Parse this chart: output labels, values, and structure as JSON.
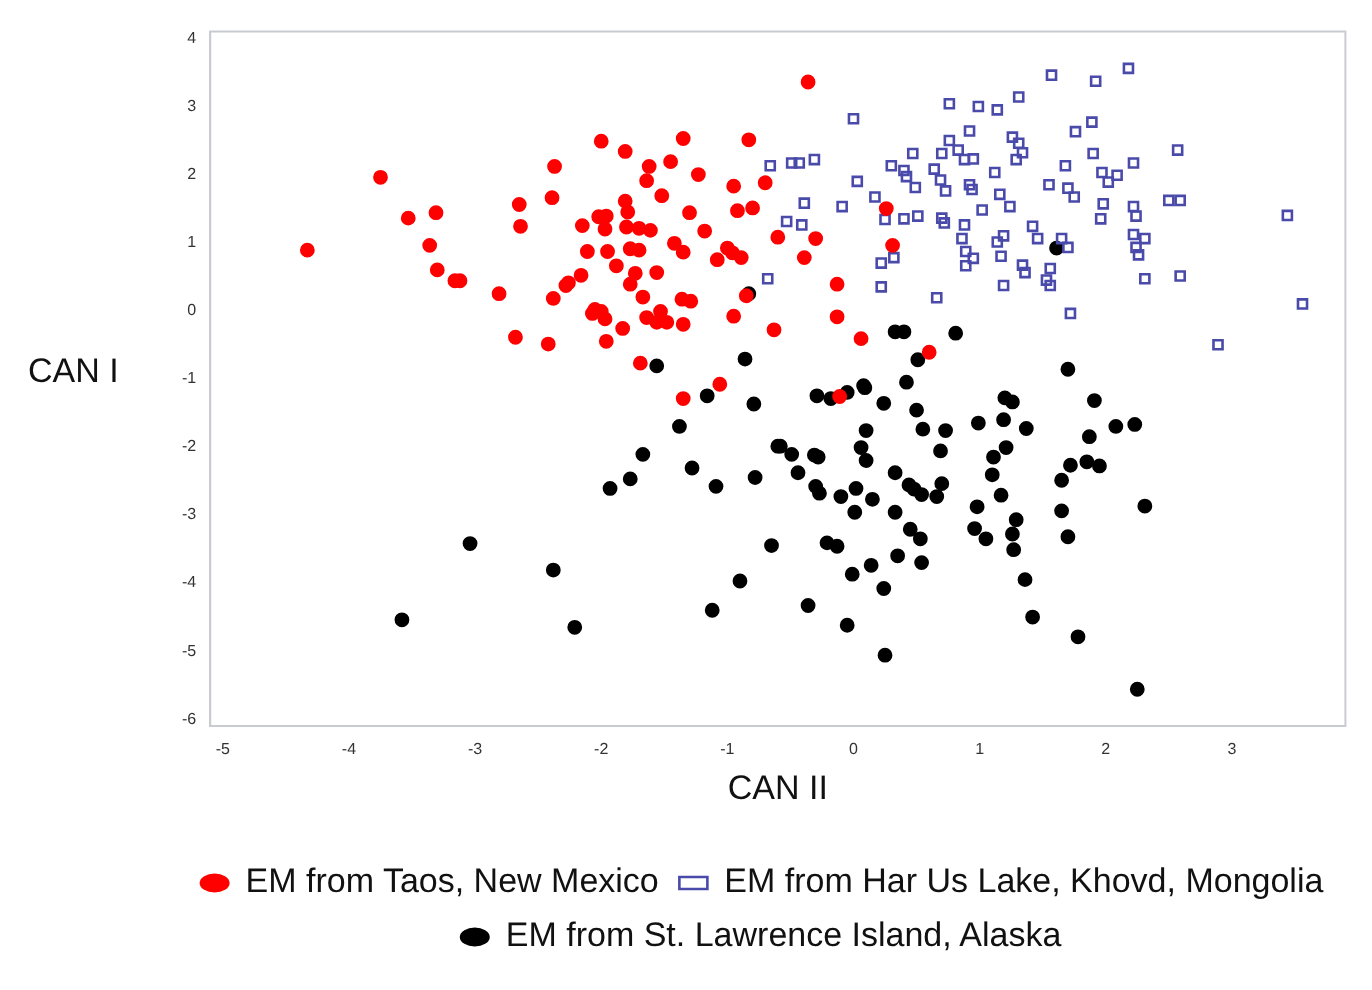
{
  "chart_data": {
    "type": "scatter",
    "xlabel": "CAN II",
    "ylabel": "CAN I",
    "xlim": [
      -5.1,
      3.9
    ],
    "xticks": [
      -5,
      -4,
      -3,
      -2,
      -1,
      0,
      1,
      2,
      3
    ],
    "ylim": [
      -6.1,
      4.1
    ],
    "yticks": [
      -6,
      -5,
      -4,
      -3,
      -2,
      -1,
      0,
      1,
      2,
      3,
      4
    ],
    "grid": false,
    "legend": "bottom",
    "series": [
      {
        "name": "EM from Taos, New Mexico",
        "color": "#ff0000",
        "marker": "circle",
        "x": [
          -4.33,
          -3.75,
          -3.53,
          -3.31,
          -3.36,
          -3.3,
          -3.16,
          -3.12,
          -2.81,
          -2.68,
          -2.42,
          -2.65,
          -2.64,
          -2.37,
          -2.39,
          -2.38,
          -2.28,
          -2.26,
          -2.16,
          -2.15,
          -2.11,
          -2.0,
          -2.02,
          -1.96,
          -1.97,
          -1.95,
          -2.05,
          -2.0,
          -2.07,
          -1.97,
          -1.96,
          -1.88,
          -1.81,
          -1.81,
          -1.79,
          -1.8,
          -1.77,
          -1.77,
          -1.73,
          -1.7,
          -1.61,
          -1.7,
          -1.67,
          -1.83,
          -1.62,
          -1.64,
          -1.56,
          -1.64,
          -1.56,
          -1.53,
          -1.48,
          -1.52,
          -1.45,
          -1.35,
          -1.42,
          -1.35,
          -1.3,
          -1.36,
          -1.29,
          -1.35,
          -1.23,
          -1.18,
          -1.08,
          -1.0,
          -0.96,
          -0.89,
          -0.95,
          -0.92,
          -0.8,
          -0.83,
          -0.7,
          -0.95,
          -0.85,
          -0.63,
          -1.06,
          -1.69,
          -1.35,
          -0.36,
          -0.6,
          -0.3,
          -0.39,
          -0.13,
          -0.13,
          0.06,
          0.6,
          0.26,
          0.31,
          -0.11
        ],
        "values": [
          0.89,
          1.96,
          1.36,
          1.44,
          0.96,
          0.6,
          0.44,
          0.44,
          0.25,
          -0.39,
          -0.49,
          1.56,
          1.24,
          2.12,
          1.66,
          0.18,
          0.37,
          0.41,
          0.52,
          1.25,
          0.87,
          2.49,
          1.38,
          1.39,
          1.2,
          0.87,
          0.02,
          -0.01,
          -0.04,
          -0.12,
          -0.45,
          0.66,
          2.34,
          1.61,
          1.45,
          1.23,
          0.91,
          0.39,
          0.55,
          1.21,
          1.18,
          0.89,
          0.2,
          -0.26,
          2.12,
          1.91,
          0.56,
          -0.1,
          -0.17,
          -0.01,
          -0.17,
          1.69,
          2.19,
          2.53,
          0.99,
          0.86,
          1.44,
          0.17,
          0.14,
          -0.2,
          2.0,
          1.17,
          0.75,
          0.92,
          0.85,
          0.78,
          1.83,
          1.47,
          1.51,
          2.51,
          1.88,
          -0.08,
          0.22,
          -0.28,
          -1.08,
          -0.77,
          -1.29,
          3.36,
          1.08,
          1.06,
          0.78,
          0.39,
          -0.09,
          -0.41,
          -0.61,
          1.5,
          0.96,
          -1.26
        ]
      },
      {
        "name": "EM from Har Us Lake, Khovd, Mongolia",
        "color": "#4a4aaa",
        "marker": "square",
        "x": [
          1.57,
          1.92,
          2.18,
          0.76,
          0.99,
          1.14,
          1.31,
          0.0,
          0.92,
          1.26,
          1.31,
          1.34,
          1.29,
          1.76,
          1.89,
          0.76,
          0.7,
          0.83,
          0.88,
          0.95,
          0.47,
          0.3,
          0.4,
          0.42,
          0.49,
          0.64,
          0.69,
          0.73,
          0.92,
          0.94,
          1.12,
          1.16,
          1.24,
          1.02,
          1.55,
          1.7,
          1.75,
          1.68,
          1.9,
          1.97,
          2.02,
          2.09,
          2.22,
          2.57,
          1.98,
          1.96,
          2.22,
          2.24,
          2.5,
          2.59,
          2.22,
          2.31,
          2.24,
          2.26,
          2.31,
          2.59,
          3.44,
          3.56,
          2.89,
          1.72,
          1.42,
          1.46,
          1.65,
          1.7,
          1.56,
          1.53,
          1.56,
          1.34,
          1.36,
          1.19,
          1.14,
          1.17,
          1.19,
          0.89,
          0.95,
          0.89,
          0.88,
          0.86,
          0.7,
          0.72,
          0.51,
          0.4,
          0.25,
          0.66,
          0.22,
          0.32,
          0.22,
          0.03,
          0.17,
          -0.09,
          -0.39,
          -0.53,
          -0.41,
          -0.66,
          -0.49,
          -0.43,
          -0.31,
          -0.68
        ],
        "values": [
          3.46,
          3.37,
          3.56,
          3.04,
          3.0,
          2.95,
          3.14,
          2.82,
          2.64,
          2.55,
          2.46,
          2.32,
          2.22,
          2.63,
          2.77,
          2.5,
          2.31,
          2.36,
          2.22,
          2.23,
          2.31,
          2.13,
          2.06,
          1.97,
          1.81,
          2.08,
          1.92,
          1.76,
          1.85,
          1.78,
          2.03,
          1.71,
          1.53,
          1.48,
          1.85,
          1.8,
          1.67,
          2.13,
          2.31,
          2.03,
          1.89,
          1.99,
          2.17,
          2.36,
          1.57,
          1.35,
          1.53,
          1.39,
          1.62,
          1.62,
          1.12,
          1.06,
          0.93,
          0.82,
          0.47,
          0.51,
          1.4,
          0.1,
          -0.5,
          -0.04,
          1.24,
          1.06,
          1.06,
          0.93,
          0.62,
          0.45,
          0.37,
          0.67,
          0.56,
          1.1,
          1.01,
          0.8,
          0.37,
          0.87,
          0.77,
          0.66,
          1.26,
          1.06,
          1.36,
          1.29,
          1.39,
          1.35,
          1.34,
          0.19,
          0.7,
          0.78,
          0.35,
          1.9,
          1.67,
          1.53,
          1.58,
          1.31,
          1.26,
          2.13,
          2.17,
          2.17,
          2.22,
          0.47
        ]
      },
      {
        "name": "EM from St. Lawrence Island, Alaska",
        "color": "#000000",
        "marker": "circle",
        "x": [
          -1.56,
          -0.86,
          -1.16,
          -0.79,
          -1.38,
          -1.67,
          -0.6,
          -1.28,
          -1.77,
          -1.93,
          -1.09,
          -0.78,
          -0.65,
          -3.04,
          -2.38,
          -3.58,
          -2.21,
          -0.9,
          -1.12,
          -0.83,
          1.61,
          0.33,
          0.4,
          0.81,
          0.51,
          0.42,
          1.7,
          0.08,
          0.09,
          -0.05,
          -0.29,
          -0.18,
          0.24,
          0.5,
          1.2,
          1.26,
          1.91,
          0.1,
          0.55,
          0.73,
          0.99,
          1.19,
          1.37,
          2.08,
          2.23,
          1.87,
          -0.58,
          -0.49,
          -0.31,
          -0.28,
          0.06,
          0.1,
          0.69,
          1.21,
          1.11,
          1.72,
          1.85,
          1.95,
          -0.44,
          0.33,
          0.44,
          0.48,
          0.54,
          0.7,
          0.66,
          -0.3,
          -0.27,
          -0.1,
          0.02,
          0.15,
          0.01,
          0.33,
          1.1,
          1.17,
          0.98,
          1.65,
          1.65,
          2.31,
          1.29,
          0.96,
          1.05,
          1.26,
          1.27,
          1.7,
          0.45,
          0.53,
          -0.21,
          -0.13,
          0.35,
          0.54,
          0.14,
          -0.01,
          1.36,
          0.24,
          -0.36,
          1.42,
          -0.05,
          1.78,
          0.25,
          2.25
        ],
        "values": [
          -0.81,
          -0.71,
          -1.25,
          -1.37,
          -1.7,
          -2.11,
          -1.99,
          -2.31,
          -2.47,
          -2.61,
          -2.58,
          -2.45,
          -3.45,
          -3.42,
          -3.81,
          -4.54,
          -4.65,
          -3.97,
          -4.4,
          0.25,
          0.92,
          -0.31,
          -0.31,
          -0.33,
          -0.72,
          -1.05,
          -0.86,
          -1.1,
          -1.13,
          -1.2,
          -1.25,
          -1.29,
          -1.36,
          -1.46,
          -1.28,
          -1.34,
          -1.32,
          -1.76,
          -1.74,
          -1.76,
          -1.65,
          -1.6,
          -1.73,
          -1.7,
          -1.67,
          -1.85,
          -1.99,
          -2.11,
          -2.12,
          -2.15,
          -2.01,
          -2.2,
          -2.06,
          -2.01,
          -2.15,
          -2.27,
          -2.22,
          -2.28,
          -2.38,
          -2.38,
          -2.56,
          -2.62,
          -2.7,
          -2.54,
          -2.73,
          -2.58,
          -2.68,
          -2.73,
          -2.61,
          -2.77,
          -2.96,
          -2.96,
          -2.41,
          -2.71,
          -2.88,
          -2.49,
          -2.94,
          -2.87,
          -3.07,
          -3.2,
          -3.35,
          -3.28,
          -3.51,
          -3.32,
          -3.21,
          -3.35,
          -3.41,
          -3.46,
          -3.6,
          -3.7,
          -3.74,
          -3.87,
          -3.95,
          -4.08,
          -4.33,
          -4.5,
          -4.62,
          -4.79,
          -5.06,
          -5.56
        ]
      }
    ]
  }
}
